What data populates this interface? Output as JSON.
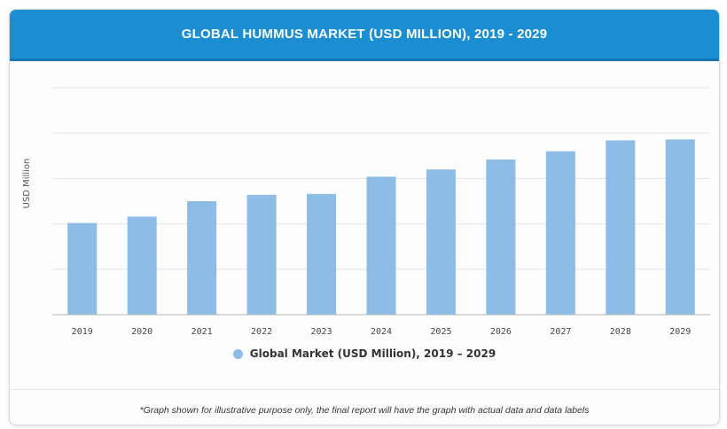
{
  "header": {
    "title": "GLOBAL HUMMUS MARKET (USD MILLION), 2019 - 2029"
  },
  "colors": {
    "header_bg": "#1a8ed0",
    "bar": "#8dbde7",
    "gridline": "#e4e4e4",
    "axis": "#b5b5b5"
  },
  "chart_data": {
    "type": "bar",
    "title": "GLOBAL HUMMUS MARKET (USD MILLION), 2019 - 2029",
    "xlabel": "",
    "ylabel": "USD Million",
    "categories": [
      "2019",
      "2020",
      "2021",
      "2022",
      "2023",
      "2024",
      "2025",
      "2026",
      "2027",
      "2028",
      "2029"
    ],
    "series": [
      {
        "name": "Global Market (USD Million), 2019 – 2029",
        "values": [
          2.02,
          2.16,
          2.5,
          2.64,
          2.66,
          3.04,
          3.2,
          3.42,
          3.6,
          3.84,
          3.86
        ]
      }
    ],
    "ylim": [
      0,
      5
    ],
    "y_tick_labels_shown": false,
    "grid": true,
    "legend_position": "bottom"
  },
  "legend": {
    "label": "Global Market (USD Million), 2019 – 2029"
  },
  "footnote": "*Graph shown for illustrative purpose only, the final report will have the graph with actual data and data labels"
}
